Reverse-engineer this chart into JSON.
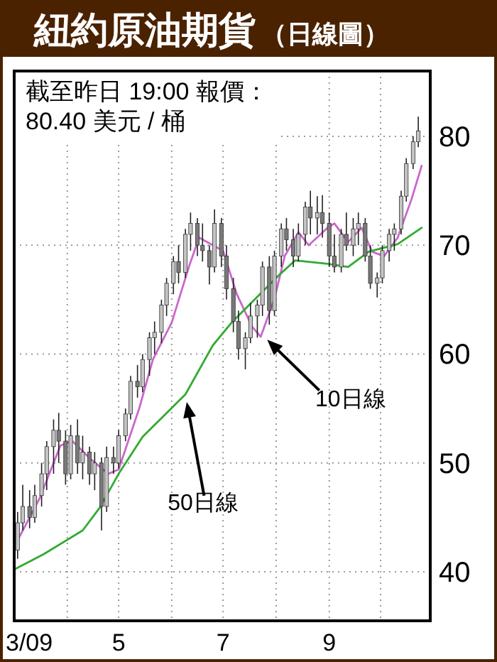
{
  "chart_data": {
    "type": "candlestick",
    "title": "紐約原油期貨",
    "subtitle": "（日線圖）",
    "annotations": [
      "截至昨日 19:00 報價：\n80.40 美元 / 桶",
      "10日線",
      "50日線"
    ],
    "xlim": [
      "2009-03-01",
      "2009-10-30"
    ],
    "xticks": [
      {
        "value": "2009-03-01",
        "label": "3/09"
      },
      {
        "value": "2009-04-01",
        "label": null
      },
      {
        "value": "2009-05-01",
        "label": "5"
      },
      {
        "value": "2009-06-01",
        "label": null
      },
      {
        "value": "2009-07-01",
        "label": "7"
      },
      {
        "value": "2009-08-01",
        "label": null
      },
      {
        "value": "2009-09-01",
        "label": "9"
      },
      {
        "value": "2009-10-01",
        "label": null
      }
    ],
    "ylim": [
      35.5,
      86
    ],
    "yticks": [
      40,
      50,
      60,
      70,
      80
    ],
    "grid": true,
    "colors": [
      "#c4c4c4",
      "#c4c4c4",
      "#7a7a7a",
      "#c4c4c4",
      "#c4c4c4",
      "#c4c4c4",
      "#c4c4c4",
      "#7a7a7a",
      "#7a7a7a",
      "#c4c4c4",
      "#7a7a7a",
      "#c4c4c4",
      "#7a7a7a",
      "#c4c4c4",
      "#7a7a7a",
      "#c4c4c4",
      "#7a7a7a",
      "#c4c4c4",
      "#c4c4c4",
      "#c4c4c4",
      "#7a7a7a",
      "#c4c4c4",
      "#c4c4c4",
      "#c4c4c4",
      "#c4c4c4",
      "#c4c4c4",
      "#c4c4c4",
      "#7a7a7a",
      "#c4c4c4",
      "#c4c4c4",
      "#7a7a7a",
      "#7a7a7a",
      "#7a7a7a",
      "#c4c4c4",
      "#7a7a7a",
      "#7a7a7a",
      "#7a7a7a",
      "#7a7a7a",
      "#c4c4c4",
      "#c4c4c4",
      "#c4c4c4",
      "#c4c4c4",
      "#7a7a7a",
      "#c4c4c4",
      "#c4c4c4",
      "#7a7a7a",
      "#7a7a7a",
      "#c4c4c4",
      "#c4c4c4",
      "#7a7a7a",
      "#c4c4c4",
      "#7a7a7a",
      "#7a7a7a",
      "#7a7a7a",
      "#c4c4c4",
      "#7a7a7a",
      "#c4c4c4",
      "#c4c4c4",
      "#7a7a7a",
      "#7a7a7a",
      "#c4c4c4",
      "#c4c4c4",
      "#c4c4c4",
      "#c4c4c4",
      "#c4c4c4",
      "#c4c4c4",
      "#c4c4c4",
      "#c4c4c4"
    ],
    "x": [
      "2009-03-03",
      "2009-03-06",
      "2009-03-10",
      "2009-03-13",
      "2009-03-17",
      "2009-03-20",
      "2009-03-24",
      "2009-03-27",
      "2009-03-31",
      "2009-04-03",
      "2009-04-07",
      "2009-04-10",
      "2009-04-14",
      "2009-04-17",
      "2009-04-21",
      "2009-04-24",
      "2009-04-28",
      "2009-05-01",
      "2009-05-05",
      "2009-05-08",
      "2009-05-12",
      "2009-05-15",
      "2009-05-19",
      "2009-05-22",
      "2009-05-26",
      "2009-05-29",
      "2009-06-02",
      "2009-06-05",
      "2009-06-09",
      "2009-06-12",
      "2009-06-16",
      "2009-06-19",
      "2009-06-23",
      "2009-06-26",
      "2009-06-30",
      "2009-07-03",
      "2009-07-07",
      "2009-07-10",
      "2009-07-14",
      "2009-07-17",
      "2009-07-21",
      "2009-07-24",
      "2009-07-28",
      "2009-07-31",
      "2009-08-04",
      "2009-08-07",
      "2009-08-11",
      "2009-08-14",
      "2009-08-18",
      "2009-08-21",
      "2009-08-25",
      "2009-08-28",
      "2009-09-01",
      "2009-09-04",
      "2009-09-08",
      "2009-09-11",
      "2009-09-15",
      "2009-09-18",
      "2009-09-22",
      "2009-09-25",
      "2009-09-29",
      "2009-10-02",
      "2009-10-06",
      "2009-10-09",
      "2009-10-13",
      "2009-10-16",
      "2009-10-20",
      "2009-10-23"
    ],
    "ohlc": [
      [
        42,
        45.5,
        41.2,
        44.5
      ],
      [
        44.5,
        48,
        43.8,
        46
      ],
      [
        46,
        47.5,
        44,
        45
      ],
      [
        45,
        48,
        44.5,
        47
      ],
      [
        47,
        50,
        46,
        49
      ],
      [
        49,
        52,
        47.5,
        51.5
      ],
      [
        51.5,
        54,
        49,
        53
      ],
      [
        53,
        54.6,
        50,
        52
      ],
      [
        52,
        53,
        48,
        49
      ],
      [
        49,
        53.5,
        48.5,
        52.5
      ],
      [
        52.5,
        54,
        49,
        50
      ],
      [
        50,
        52.5,
        48.5,
        51
      ],
      [
        51,
        51.5,
        48,
        49
      ],
      [
        49,
        51,
        47.5,
        50
      ],
      [
        50,
        50.5,
        43.8,
        46
      ],
      [
        46,
        51.5,
        45.5,
        50.5
      ],
      [
        50.5,
        51.5,
        49,
        50
      ],
      [
        50,
        53,
        49.5,
        52.5
      ],
      [
        52.5,
        55,
        52,
        54.5
      ],
      [
        54.5,
        58,
        54,
        57.5
      ],
      [
        57.5,
        59,
        56,
        57
      ],
      [
        57,
        60,
        56.5,
        59.5
      ],
      [
        59.5,
        62,
        58,
        61.5
      ],
      [
        61.5,
        63,
        60,
        62
      ],
      [
        62,
        65,
        61,
        64.5
      ],
      [
        64.5,
        67,
        63.5,
        66.5
      ],
      [
        66.5,
        69,
        65.5,
        68.5
      ],
      [
        68.5,
        70,
        66.5,
        67.5
      ],
      [
        67.5,
        71.5,
        67,
        71
      ],
      [
        71,
        73,
        69.5,
        72
      ],
      [
        72,
        72.5,
        69,
        70
      ],
      [
        70,
        72,
        68.5,
        69.5
      ],
      [
        69.5,
        70,
        66.4,
        68
      ],
      [
        68,
        73.3,
        67.5,
        72
      ],
      [
        72,
        72.5,
        68,
        69
      ],
      [
        69,
        70,
        65,
        66
      ],
      [
        66,
        67,
        62,
        63
      ],
      [
        63,
        64,
        59.5,
        60.5
      ],
      [
        60.5,
        62,
        58.6,
        61.5
      ],
      [
        61.5,
        64.7,
        61,
        63.5
      ],
      [
        63.5,
        65,
        61.5,
        64.5
      ],
      [
        64.5,
        68.5,
        63.5,
        68
      ],
      [
        68,
        69,
        62.7,
        64
      ],
      [
        64,
        69.5,
        63.5,
        69
      ],
      [
        69,
        72,
        68,
        71.5
      ],
      [
        71.5,
        72.5,
        69.5,
        70.5
      ],
      [
        70.5,
        71.5,
        68,
        69
      ],
      [
        69,
        72,
        68.5,
        71
      ],
      [
        71,
        74,
        70,
        73.5
      ],
      [
        73.5,
        75,
        71,
        72.5
      ],
      [
        72.5,
        74.5,
        71,
        73
      ],
      [
        73,
        74.6,
        70.7,
        72
      ],
      [
        72,
        73,
        68,
        69
      ],
      [
        69,
        71,
        67.5,
        68
      ],
      [
        68,
        71.5,
        67.5,
        71
      ],
      [
        71,
        73,
        69.5,
        70
      ],
      [
        70,
        72.5,
        69,
        71.5
      ],
      [
        71.5,
        73,
        70,
        72
      ],
      [
        72,
        72.5,
        68.5,
        69
      ],
      [
        69,
        70,
        66,
        66.5
      ],
      [
        66.5,
        67.5,
        65.2,
        67
      ],
      [
        67,
        70,
        66.5,
        69.5
      ],
      [
        69.5,
        71.5,
        68.5,
        71
      ],
      [
        71,
        72,
        69.5,
        71.5
      ],
      [
        71.5,
        75,
        71,
        74.5
      ],
      [
        74.5,
        78,
        74,
        77.5
      ],
      [
        77.5,
        80,
        77,
        79.5
      ],
      [
        79.5,
        81.8,
        79,
        80.5
      ]
    ],
    "series": [
      {
        "type": "line",
        "color": "#cc66cc",
        "x": [
          "2009-03-03",
          "2009-03-16",
          "2009-03-28",
          "2009-04-04",
          "2009-04-15",
          "2009-04-25",
          "2009-05-01",
          "2009-05-13",
          "2009-05-21",
          "2009-06-01",
          "2009-06-11",
          "2009-06-17",
          "2009-06-25",
          "2009-07-01",
          "2009-07-09",
          "2009-07-18",
          "2009-07-23",
          "2009-07-31",
          "2009-08-06",
          "2009-08-14",
          "2009-08-20",
          "2009-08-31",
          "2009-09-04",
          "2009-09-12",
          "2009-09-20",
          "2009-09-26",
          "2009-10-03",
          "2009-10-11",
          "2009-10-19",
          "2009-10-25"
        ],
        "values": [
          42.9,
          46.8,
          51.6,
          52,
          50.3,
          49,
          49.4,
          55,
          59.5,
          62.9,
          68,
          70.7,
          70,
          69.5,
          65.5,
          62.5,
          61.6,
          65.1,
          69,
          71.2,
          70,
          71.6,
          72,
          70.3,
          71.6,
          69.4,
          69,
          70.7,
          74.2,
          77.3
        ]
      },
      {
        "type": "line",
        "color": "#33aa33",
        "x": [
          "2009-03-02",
          "2009-03-18",
          "2009-04-10",
          "2009-04-20",
          "2009-05-01",
          "2009-05-15",
          "2009-06-09",
          "2009-06-25",
          "2009-07-06",
          "2009-07-20",
          "2009-08-03",
          "2009-08-12",
          "2009-08-31",
          "2009-09-12",
          "2009-09-24",
          "2009-10-11",
          "2009-10-25"
        ],
        "values": [
          40.3,
          41.6,
          43.8,
          45.9,
          49,
          52.4,
          56.3,
          60.8,
          62.9,
          65.1,
          67.3,
          68.6,
          68.3,
          68,
          69.4,
          70.1,
          71.6
        ]
      }
    ]
  }
}
